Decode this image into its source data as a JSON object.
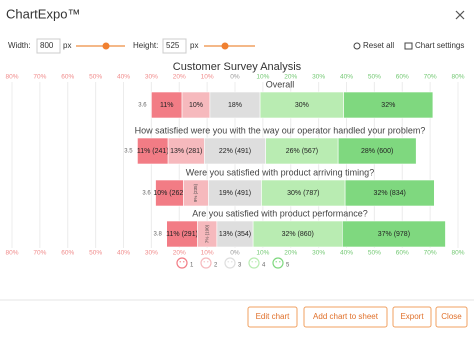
{
  "ui": {
    "app_title": "ChartExpo™",
    "width_label": "Width:",
    "width_value": "800",
    "width_unit": "px",
    "height_label": "Height:",
    "height_value": "525",
    "height_unit": "px",
    "reset": "Reset all",
    "settings": "Chart settings",
    "buttons": [
      "Edit chart",
      "Add chart to sheet",
      "Export",
      "Close"
    ]
  },
  "chart_data": {
    "type": "diverging_bar",
    "title": "Customer Survey Analysis",
    "categories": [
      "Overall",
      "How satisfied were you with the way our operator handled your problem?",
      "Were you satisfied with product arriving timing?",
      "Are you satisfied with product performance?"
    ],
    "scores": [
      3.6,
      3.5,
      3.6,
      3.8
    ],
    "series": [
      {
        "name": "1",
        "color": "#f27c85",
        "values": [
          11,
          11,
          10,
          11
        ],
        "value_labels": [
          "11%",
          "11% (241)",
          "10% (262)",
          "11% (291)"
        ]
      },
      {
        "name": "2",
        "color": "#f6b9bd",
        "values": [
          10,
          13,
          9,
          7
        ],
        "value_labels": [
          "10%",
          "13% (281)",
          "9% (235)",
          "7% (190)"
        ]
      },
      {
        "name": "3",
        "color": "#dedede",
        "values": [
          18,
          22,
          19,
          13
        ],
        "value_labels": [
          "18%",
          "22% (491)",
          "19% (491)",
          "13% (354)"
        ]
      },
      {
        "name": "4",
        "color": "#b9ecb2",
        "values": [
          30,
          26,
          30,
          32
        ],
        "value_labels": [
          "30%",
          "26% (567)",
          "30% (787)",
          "32% (860)"
        ]
      },
      {
        "name": "5",
        "color": "#7fd87f",
        "values": [
          32,
          28,
          32,
          37
        ],
        "value_labels": [
          "32%",
          "28% (600)",
          "32% (834)",
          "37% (978)"
        ]
      }
    ],
    "xlim": [
      -80,
      80
    ],
    "xticks": [
      {
        "value": -80,
        "label": "80%"
      },
      {
        "value": -70,
        "label": "70%"
      },
      {
        "value": -60,
        "label": "60%"
      },
      {
        "value": -50,
        "label": "50%"
      },
      {
        "value": -40,
        "label": "40%"
      },
      {
        "value": -30,
        "label": "30%"
      },
      {
        "value": -20,
        "label": "20%"
      },
      {
        "value": -10,
        "label": "10%"
      },
      {
        "value": 0,
        "label": "0%"
      },
      {
        "value": 10,
        "label": "10%"
      },
      {
        "value": 20,
        "label": "20%"
      },
      {
        "value": 30,
        "label": "30%"
      },
      {
        "value": 40,
        "label": "40%"
      },
      {
        "value": 50,
        "label": "50%"
      },
      {
        "value": 60,
        "label": "60%"
      },
      {
        "value": 70,
        "label": "70%"
      },
      {
        "value": 80,
        "label": "80%"
      }
    ],
    "grid": true
  }
}
